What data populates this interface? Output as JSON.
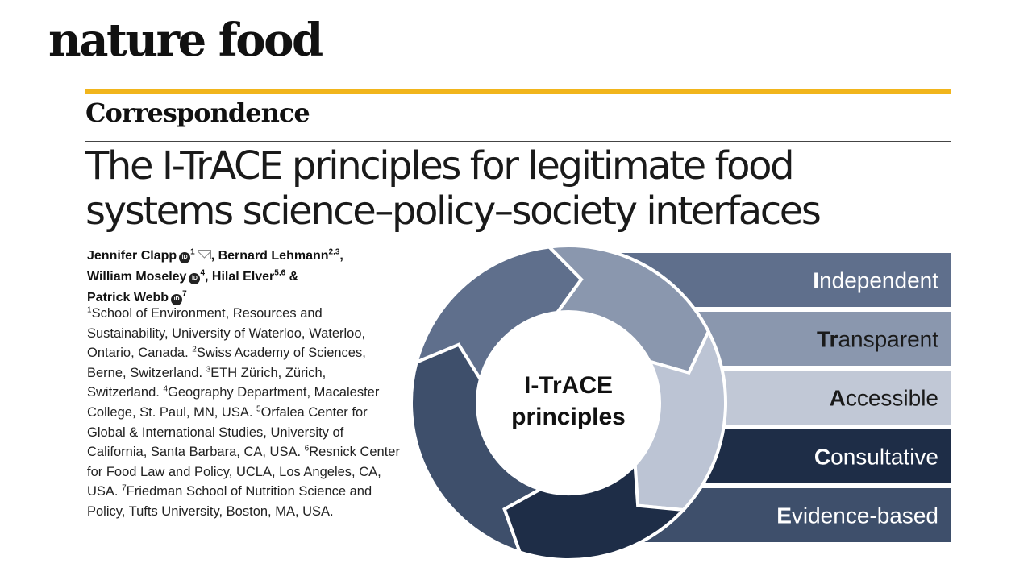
{
  "journal": "nature food",
  "section": "Correspondence",
  "title_lines": [
    "The I-TrACE principles for legitimate food",
    "systems science–policy–society interfaces"
  ],
  "authors": [
    {
      "name": "Jennifer Clapp",
      "orcid": true,
      "sup": "1",
      "mail": true,
      "after": ", "
    },
    {
      "name": "Bernard Lehmann",
      "orcid": false,
      "sup": "2,3",
      "mail": false,
      "after": ","
    },
    {
      "name": "William Moseley",
      "orcid": true,
      "sup": "4",
      "mail": false,
      "after": ", "
    },
    {
      "name": "Hilal Elver",
      "orcid": false,
      "sup": "5,6",
      "mail": false,
      "after": " &"
    },
    {
      "name": "Patrick Webb",
      "orcid": true,
      "sup": "7",
      "mail": false,
      "after": ""
    }
  ],
  "affiliations": [
    {
      "sup": "1",
      "text": "School of Environment, Resources and Sustainability, University of Waterloo, Waterloo, Ontario, Canada. "
    },
    {
      "sup": "2",
      "text": "Swiss Academy of Sciences, Berne, Switzerland. "
    },
    {
      "sup": "3",
      "text": "ETH Zürich, Zürich, Switzerland. "
    },
    {
      "sup": "4",
      "text": "Geography Department, Macalester College, St. Paul, MN, USA. "
    },
    {
      "sup": "5",
      "text": "Orfalea Center for Global & International Studies, University of California, Santa Barbara, CA, USA. "
    },
    {
      "sup": "6",
      "text": "Resnick Center for Food Law and Policy, UCLA, Los Angeles, CA, USA. "
    },
    {
      "sup": "7",
      "text": "Friedman School of Nutrition Science and Policy, Tufts University, Boston, MA, USA."
    }
  ],
  "orcid_label": "iD",
  "diagram": {
    "center_lines": [
      "I-TrACE",
      "principles"
    ],
    "principles": [
      {
        "bold": "I",
        "rest": "ndependent",
        "fill": "#5f6f8c",
        "text": "#ffffff"
      },
      {
        "bold": "Tr",
        "rest": "ansparent",
        "fill": "#8a97ae",
        "text": "#1a1a1a"
      },
      {
        "bold": "A",
        "rest": "ccessible",
        "fill": "#c1c8d6",
        "text": "#1a1a1a"
      },
      {
        "bold": "C",
        "rest": "onsultative",
        "fill": "#1e2d47",
        "text": "#ffffff"
      },
      {
        "bold": "E",
        "rest": "vidence-based",
        "fill": "#3e4f6b",
        "text": "#ffffff"
      }
    ]
  },
  "colors": {
    "gold": "#f1b51c",
    "arrow_1": "#5f6f8c",
    "arrow_2": "#8a97ae",
    "arrow_3": "#bcc4d4",
    "arrow_4": "#1e2d47",
    "arrow_5": "#3e4f6b"
  }
}
